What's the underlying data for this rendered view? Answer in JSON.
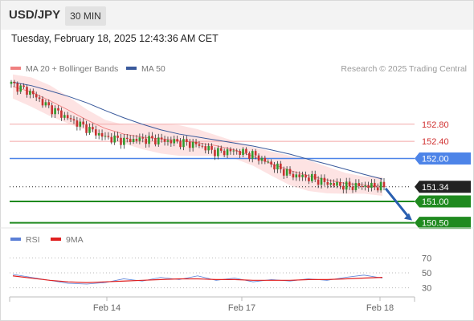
{
  "header": {
    "symbol": "USD/JPY",
    "timeframe": "30 MIN",
    "datetime": "Tuesday, February 18, 2025 12:43:36 AM CET"
  },
  "legend": {
    "items": [
      {
        "label": "MA 20 + Bollinger Bands",
        "color": "#f08080"
      },
      {
        "label": "MA 50",
        "color": "#3a5a9c"
      }
    ],
    "credit": "Research © 2025 Trading Central"
  },
  "rsi_legend": {
    "items": [
      {
        "label": "RSI",
        "color": "#5b7fd6"
      },
      {
        "label": "9MA",
        "color": "#e02020"
      }
    ]
  },
  "chart_data": [
    {
      "type": "line",
      "title": "",
      "subtitle": "",
      "xlabel": "",
      "ylabel": "",
      "x_ticks": [
        "Feb 14",
        "Feb 17",
        "Feb 18"
      ],
      "ylim": [
        150.4,
        153.9
      ],
      "series": [
        {
          "name": "MA 20 + Bollinger Bands",
          "color": "#f08080",
          "values": [
            153.68,
            153.55,
            153.35,
            153.13,
            152.9,
            152.7,
            152.57,
            152.5,
            152.46,
            152.42,
            152.37,
            152.3,
            152.2,
            152.05,
            151.88,
            151.72,
            151.6,
            151.5,
            151.42,
            151.38,
            151.35
          ]
        },
        {
          "name": "MA 50",
          "color": "#3a5a9c",
          "values": [
            153.78,
            153.7,
            153.58,
            153.45,
            153.3,
            153.12,
            152.95,
            152.8,
            152.67,
            152.57,
            152.5,
            152.43,
            152.36,
            152.29,
            152.2,
            152.1,
            151.98,
            151.87,
            151.75,
            151.63,
            151.52
          ]
        },
        {
          "name": "Price",
          "color": "#333333",
          "values": [
            153.74,
            153.55,
            153.2,
            152.95,
            152.72,
            152.5,
            152.42,
            152.45,
            152.43,
            152.38,
            152.32,
            152.15,
            152.18,
            152.08,
            151.85,
            151.62,
            151.55,
            151.42,
            151.35,
            151.36,
            151.34
          ]
        }
      ],
      "levels": [
        {
          "value": 152.8,
          "label": "152.80",
          "kind": "resistance",
          "color": "#f3a8a8"
        },
        {
          "value": 152.4,
          "label": "152.40",
          "kind": "resistance",
          "color": "#f3a8a8"
        },
        {
          "value": 152.0,
          "label": "152.00",
          "kind": "pivot",
          "color": "#4d84e8"
        },
        {
          "value": 151.34,
          "label": "151.34",
          "kind": "last",
          "color": "#222222"
        },
        {
          "value": 151.0,
          "label": "151.00",
          "kind": "support",
          "color": "#1f8a1f"
        },
        {
          "value": 150.5,
          "label": "150.50",
          "kind": "support",
          "color": "#1f8a1f"
        }
      ],
      "annotations": [
        {
          "type": "arrow",
          "direction": "down",
          "from": 151.34,
          "to": 150.5,
          "color": "#2a5fb0"
        }
      ]
    },
    {
      "type": "line",
      "title": "",
      "xlabel": "",
      "ylabel": "",
      "ylim": [
        20,
        80
      ],
      "y_ticks": [
        70,
        50,
        30
      ],
      "x_ticks": [
        "Feb 14",
        "Feb 17",
        "Feb 18"
      ],
      "series": [
        {
          "name": "RSI",
          "color": "#5b7fd6",
          "values": [
            48,
            44,
            40,
            36,
            35,
            37,
            42,
            39,
            44,
            41,
            46,
            40,
            43,
            38,
            41,
            39,
            42,
            40,
            44,
            47,
            43
          ]
        },
        {
          "name": "9MA",
          "color": "#e02020",
          "values": [
            46,
            43,
            40,
            38,
            37,
            38,
            39,
            40,
            41,
            42,
            42,
            41,
            41,
            40,
            40,
            40,
            41,
            41,
            42,
            43,
            44
          ]
        }
      ]
    }
  ]
}
